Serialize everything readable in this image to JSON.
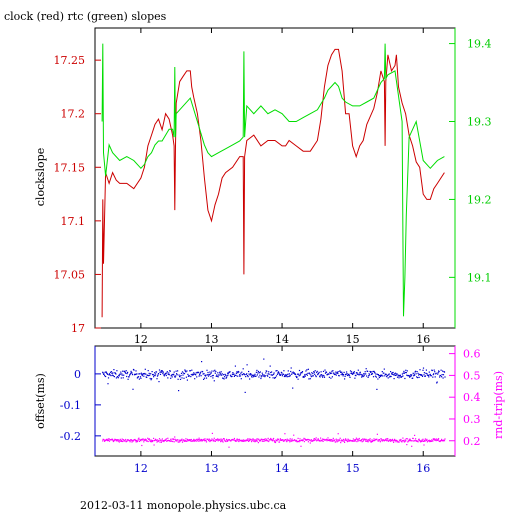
{
  "page": {
    "footer": "2012-03-11 monopole.physics.ubc.ca"
  },
  "colors": {
    "clock": "#cc0000",
    "rtc": "#00dd00",
    "offset": "#0000cc",
    "roundtrip": "#ff00ff",
    "frame": "#000000"
  },
  "chart_data": [
    {
      "type": "line",
      "title": "clock (red) rtc (green) slopes",
      "xlabel": "",
      "ylabel": "clockslope",
      "y2label": "",
      "xlim": [
        11.35,
        16.45
      ],
      "ylim": [
        17.0,
        17.28
      ],
      "y2lim": [
        19.035,
        19.42
      ],
      "x_ticks": [
        12,
        13,
        14,
        15,
        16
      ],
      "y_ticks": [
        17,
        17.05,
        17.1,
        17.15,
        17.2,
        17.25
      ],
      "y2_ticks": [
        19.1,
        19.2,
        19.3,
        19.4
      ],
      "series": [
        {
          "name": "clock",
          "axis": "left",
          "points": [
            [
              11.45,
              17.01
            ],
            [
              11.46,
              17.12
            ],
            [
              11.47,
              17.06
            ],
            [
              11.5,
              17.145
            ],
            [
              11.55,
              17.135
            ],
            [
              11.6,
              17.145
            ],
            [
              11.65,
              17.138
            ],
            [
              11.7,
              17.135
            ],
            [
              11.8,
              17.135
            ],
            [
              11.9,
              17.13
            ],
            [
              12.0,
              17.14
            ],
            [
              12.05,
              17.15
            ],
            [
              12.1,
              17.17
            ],
            [
              12.15,
              17.18
            ],
            [
              12.2,
              17.19
            ],
            [
              12.25,
              17.195
            ],
            [
              12.3,
              17.185
            ],
            [
              12.35,
              17.2
            ],
            [
              12.4,
              17.195
            ],
            [
              12.45,
              17.18
            ],
            [
              12.47,
              17.17
            ],
            [
              12.48,
              17.11
            ],
            [
              12.49,
              17.17
            ],
            [
              12.5,
              17.21
            ],
            [
              12.55,
              17.23
            ],
            [
              12.6,
              17.235
            ],
            [
              12.65,
              17.24
            ],
            [
              12.7,
              17.24
            ],
            [
              12.72,
              17.225
            ],
            [
              12.75,
              17.215
            ],
            [
              12.8,
              17.2
            ],
            [
              12.85,
              17.175
            ],
            [
              12.9,
              17.14
            ],
            [
              12.95,
              17.11
            ],
            [
              13.0,
              17.1
            ],
            [
              13.05,
              17.115
            ],
            [
              13.1,
              17.125
            ],
            [
              13.15,
              17.14
            ],
            [
              13.2,
              17.145
            ],
            [
              13.3,
              17.15
            ],
            [
              13.4,
              17.16
            ],
            [
              13.45,
              17.16
            ],
            [
              13.46,
              17.05
            ],
            [
              13.47,
              17.16
            ],
            [
              13.5,
              17.175
            ],
            [
              13.6,
              17.18
            ],
            [
              13.7,
              17.17
            ],
            [
              13.8,
              17.175
            ],
            [
              13.9,
              17.175
            ],
            [
              14.0,
              17.17
            ],
            [
              14.05,
              17.17
            ],
            [
              14.1,
              17.175
            ],
            [
              14.2,
              17.17
            ],
            [
              14.3,
              17.165
            ],
            [
              14.4,
              17.165
            ],
            [
              14.5,
              17.175
            ],
            [
              14.55,
              17.195
            ],
            [
              14.6,
              17.225
            ],
            [
              14.65,
              17.245
            ],
            [
              14.7,
              17.255
            ],
            [
              14.75,
              17.26
            ],
            [
              14.8,
              17.26
            ],
            [
              14.85,
              17.24
            ],
            [
              14.9,
              17.2
            ],
            [
              14.95,
              17.2
            ],
            [
              15.0,
              17.17
            ],
            [
              15.05,
              17.16
            ],
            [
              15.1,
              17.17
            ],
            [
              15.15,
              17.175
            ],
            [
              15.2,
              17.19
            ],
            [
              15.3,
              17.205
            ],
            [
              15.35,
              17.22
            ],
            [
              15.4,
              17.24
            ],
            [
              15.45,
              17.23
            ],
            [
              15.46,
              17.17
            ],
            [
              15.47,
              17.23
            ],
            [
              15.5,
              17.255
            ],
            [
              15.55,
              17.24
            ],
            [
              15.6,
              17.245
            ],
            [
              15.62,
              17.255
            ],
            [
              15.65,
              17.225
            ],
            [
              15.7,
              17.21
            ],
            [
              15.75,
              17.2
            ],
            [
              15.8,
              17.18
            ],
            [
              15.85,
              17.17
            ],
            [
              15.9,
              17.155
            ],
            [
              15.95,
              17.15
            ],
            [
              16.0,
              17.125
            ],
            [
              16.05,
              17.12
            ],
            [
              16.1,
              17.12
            ],
            [
              16.15,
              17.13
            ],
            [
              16.2,
              17.135
            ],
            [
              16.25,
              17.14
            ],
            [
              16.3,
              17.145
            ]
          ]
        },
        {
          "name": "rtc",
          "axis": "right",
          "points": [
            [
              11.45,
              19.3
            ],
            [
              11.46,
              19.4
            ],
            [
              11.47,
              19.26
            ],
            [
              11.5,
              19.23
            ],
            [
              11.55,
              19.27
            ],
            [
              11.6,
              19.26
            ],
            [
              11.7,
              19.25
            ],
            [
              11.8,
              19.255
            ],
            [
              11.9,
              19.25
            ],
            [
              12.0,
              19.24
            ],
            [
              12.05,
              19.245
            ],
            [
              12.1,
              19.255
            ],
            [
              12.15,
              19.26
            ],
            [
              12.2,
              19.27
            ],
            [
              12.25,
              19.275
            ],
            [
              12.3,
              19.275
            ],
            [
              12.4,
              19.29
            ],
            [
              12.45,
              19.29
            ],
            [
              12.47,
              19.28
            ],
            [
              12.48,
              19.37
            ],
            [
              12.49,
              19.28
            ],
            [
              12.5,
              19.31
            ],
            [
              12.6,
              19.32
            ],
            [
              12.7,
              19.33
            ],
            [
              12.8,
              19.3
            ],
            [
              12.9,
              19.27
            ],
            [
              12.95,
              19.26
            ],
            [
              13.0,
              19.255
            ],
            [
              13.1,
              19.26
            ],
            [
              13.2,
              19.265
            ],
            [
              13.3,
              19.27
            ],
            [
              13.4,
              19.275
            ],
            [
              13.45,
              19.28
            ],
            [
              13.46,
              19.39
            ],
            [
              13.47,
              19.28
            ],
            [
              13.5,
              19.32
            ],
            [
              13.6,
              19.31
            ],
            [
              13.7,
              19.32
            ],
            [
              13.8,
              19.31
            ],
            [
              13.9,
              19.315
            ],
            [
              14.0,
              19.31
            ],
            [
              14.1,
              19.3
            ],
            [
              14.2,
              19.3
            ],
            [
              14.3,
              19.305
            ],
            [
              14.4,
              19.31
            ],
            [
              14.5,
              19.315
            ],
            [
              14.6,
              19.33
            ],
            [
              14.65,
              19.34
            ],
            [
              14.7,
              19.345
            ],
            [
              14.75,
              19.35
            ],
            [
              14.8,
              19.345
            ],
            [
              14.85,
              19.33
            ],
            [
              14.9,
              19.325
            ],
            [
              15.0,
              19.32
            ],
            [
              15.1,
              19.32
            ],
            [
              15.2,
              19.325
            ],
            [
              15.3,
              19.33
            ],
            [
              15.4,
              19.35
            ],
            [
              15.45,
              19.355
            ],
            [
              15.46,
              19.4
            ],
            [
              15.47,
              19.355
            ],
            [
              15.5,
              19.36
            ],
            [
              15.6,
              19.365
            ],
            [
              15.7,
              19.3
            ],
            [
              15.72,
              19.05
            ],
            [
              15.74,
              19.1
            ],
            [
              15.76,
              19.18
            ],
            [
              15.8,
              19.28
            ],
            [
              15.9,
              19.3
            ],
            [
              16.0,
              19.25
            ],
            [
              16.1,
              19.24
            ],
            [
              16.2,
              19.25
            ],
            [
              16.3,
              19.255
            ]
          ]
        }
      ]
    },
    {
      "type": "scatter",
      "title": "",
      "xlabel": "",
      "ylabel": "offset(ms)",
      "y2label": "rnd-trip(ms)",
      "xlim": [
        11.35,
        16.45
      ],
      "ylim": [
        -0.265,
        0.09
      ],
      "y2lim": [
        0.13,
        0.635
      ],
      "x_ticks": [
        12,
        13,
        14,
        15,
        16
      ],
      "y_ticks": [
        0,
        -0.1,
        -0.2
      ],
      "y2_ticks": [
        0.2,
        0.3,
        0.4,
        0.5,
        0.6
      ],
      "series": [
        {
          "name": "offset",
          "axis": "left",
          "x_range": [
            11.45,
            16.3
          ],
          "center": 0.0,
          "spread": 0.012
        },
        {
          "name": "rnd-trip",
          "axis": "right",
          "x_range": [
            11.45,
            16.3
          ],
          "center": 0.205,
          "spread": 0.007
        }
      ]
    }
  ]
}
